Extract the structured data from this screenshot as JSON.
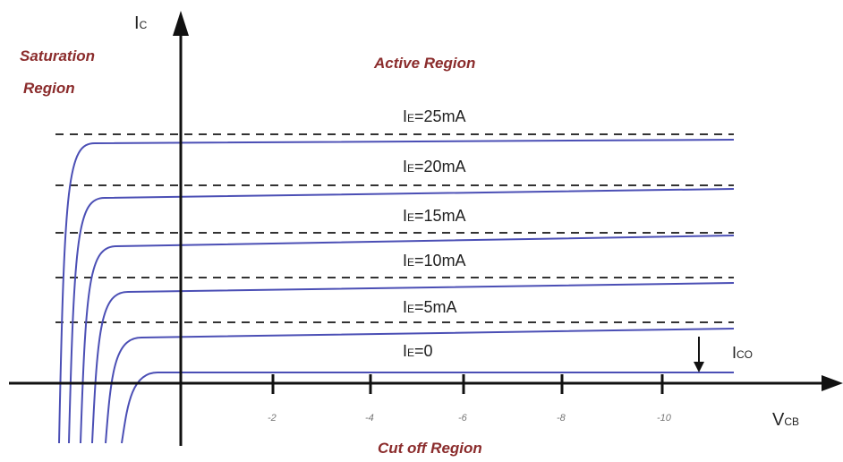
{
  "colors": {
    "region_text": "#8b2c2c",
    "curve": "#4b4fb5",
    "dashed": "#333333",
    "axis": "#111111"
  },
  "labels": {
    "y_axis_main": "I",
    "y_axis_sub": "C",
    "x_axis_main": "V",
    "x_axis_sub": "CB",
    "saturation_line1": "Saturation",
    "saturation_line2": "Region",
    "active": "Active Region",
    "cutoff": "Cut off Region",
    "ico_main": "I",
    "ico_sub": "CO"
  },
  "curves": [
    {
      "prefix": "I",
      "sub": "E",
      "value": "=25mA"
    },
    {
      "prefix": "I",
      "sub": "E",
      "value": "=20mA"
    },
    {
      "prefix": "I",
      "sub": "E",
      "value": "=15mA"
    },
    {
      "prefix": "I",
      "sub": "E",
      "value": "=10mA"
    },
    {
      "prefix": "I",
      "sub": "E",
      "value": "=5mA"
    },
    {
      "prefix": "I",
      "sub": "E",
      "value": "=0"
    }
  ],
  "x_ticks": [
    "-2",
    "-4",
    "-6",
    "-8",
    "-10"
  ]
}
